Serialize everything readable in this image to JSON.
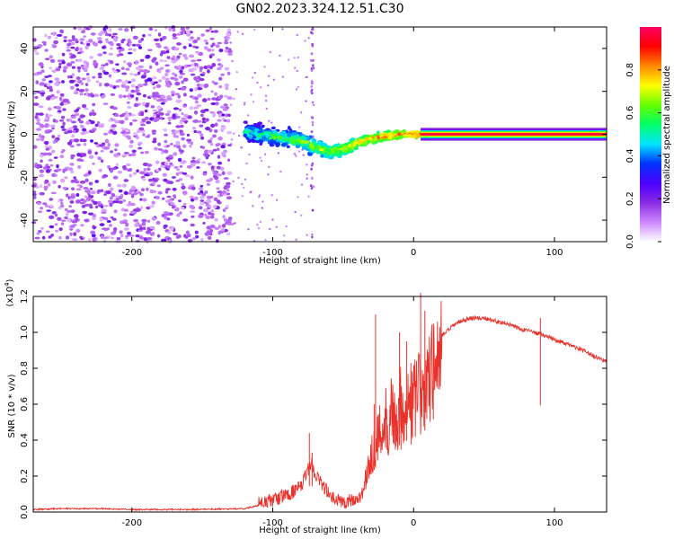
{
  "figure_title": "GN02.2023.324.12.51.C30",
  "chart_data": [
    {
      "type": "heatmap",
      "xlabel": "Height of straight line (km)",
      "ylabel": "Frequency (Hz)",
      "xlim": [
        -270,
        137
      ],
      "ylim": [
        -50,
        50
      ],
      "xticks": [
        -200,
        -100,
        0,
        100
      ],
      "yticks": [
        -40,
        -20,
        0,
        20,
        40
      ],
      "colorbar": {
        "label": "Normalized spectral amplitude",
        "range": [
          0,
          1
        ],
        "ticks": [
          0.0,
          0.2,
          0.4,
          0.6,
          0.8
        ],
        "colormap": [
          "#ffffff",
          "#cc88ff",
          "#8a2be2",
          "#4b00ff",
          "#0033ff",
          "#00e5ff",
          "#00ff66",
          "#66ff00",
          "#ffff00",
          "#ff8800",
          "#ff0000",
          "#ff0066"
        ]
      },
      "features": {
        "noise_region_km": [
          -270,
          -130
        ],
        "noise_amplitude": [
          0.05,
          0.2
        ],
        "sparse_region_km": [
          -130,
          -120
        ],
        "transition_km": [
          -120,
          5
        ],
        "transition_center_hz": [
          [
            -120,
            1
          ],
          [
            -110,
            0
          ],
          [
            -100,
            -1
          ],
          [
            -90,
            -2
          ],
          [
            -80,
            -3
          ],
          [
            -70,
            -6
          ],
          [
            -60,
            -8
          ],
          [
            -50,
            -7
          ],
          [
            -40,
            -4
          ],
          [
            -30,
            -2
          ],
          [
            -20,
            -1
          ],
          [
            -10,
            0
          ],
          [
            0,
            0
          ],
          [
            5,
            0
          ]
        ],
        "tone_region_km": [
          5,
          137
        ],
        "tone_frequency_hz": 0,
        "tone_amplitude": 0.98
      }
    },
    {
      "type": "line",
      "xlabel": "Height of straight line (km)",
      "ylabel": "SNR (10 * v/v)",
      "y_scale_note": "(x10",
      "y_scale_exp": "4",
      "xlim": [
        -270,
        137
      ],
      "ylim": [
        0,
        1.2
      ],
      "xticks": [
        -200,
        -100,
        0,
        100
      ],
      "yticks": [
        0.0,
        0.2,
        0.4,
        0.6,
        0.8,
        1.0,
        1.2
      ],
      "line_color": "#e8322b",
      "series_envelope": [
        [
          -270,
          0.01
        ],
        [
          -250,
          0.015
        ],
        [
          -220,
          0.015
        ],
        [
          -200,
          0.01
        ],
        [
          -160,
          0.01
        ],
        [
          -120,
          0.015
        ],
        [
          -100,
          0.05
        ],
        [
          -90,
          0.08
        ],
        [
          -80,
          0.12
        ],
        [
          -73,
          0.26
        ],
        [
          -70,
          0.2
        ],
        [
          -65,
          0.14
        ],
        [
          -58,
          0.06
        ],
        [
          -50,
          0.04
        ],
        [
          -40,
          0.06
        ],
        [
          -35,
          0.15
        ],
        [
          -30,
          0.35
        ],
        [
          -25,
          0.45
        ],
        [
          -20,
          0.55
        ],
        [
          -15,
          0.6
        ],
        [
          -10,
          0.62
        ],
        [
          -5,
          0.66
        ],
        [
          0,
          0.66
        ],
        [
          5,
          0.72
        ],
        [
          10,
          0.78
        ],
        [
          15,
          0.88
        ],
        [
          20,
          0.98
        ],
        [
          30,
          1.05
        ],
        [
          40,
          1.08
        ],
        [
          50,
          1.08
        ],
        [
          60,
          1.06
        ],
        [
          70,
          1.04
        ],
        [
          80,
          1.01
        ],
        [
          90,
          0.99
        ],
        [
          100,
          0.96
        ],
        [
          110,
          0.93
        ],
        [
          120,
          0.9
        ],
        [
          130,
          0.86
        ],
        [
          137,
          0.84
        ]
      ],
      "spikes": [
        [
          -74,
          0.44
        ],
        [
          -72,
          0.33
        ],
        [
          -28,
          0.6
        ],
        [
          -27,
          1.1
        ],
        [
          -10,
          1.0
        ],
        [
          -5,
          0.95
        ],
        [
          5,
          1.22
        ],
        [
          8,
          1.12
        ],
        [
          14,
          1.05
        ],
        [
          90,
          1.08
        ]
      ]
    }
  ]
}
